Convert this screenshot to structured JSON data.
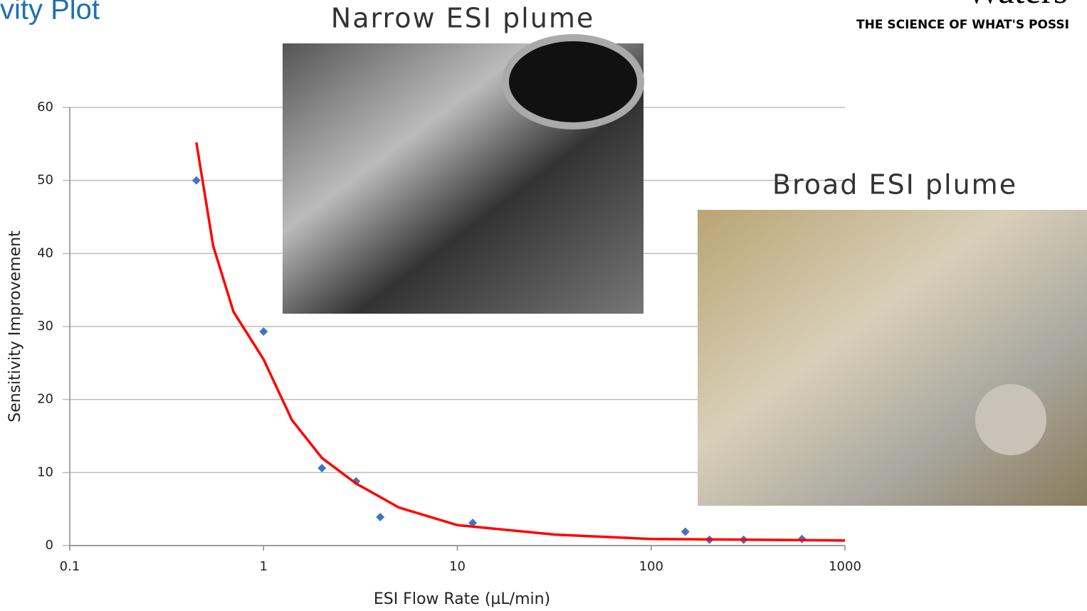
{
  "header": {
    "title": "vity Plot",
    "logo": "Waters",
    "tagline": "THE SCIENCE OF WHAT'S POSSI"
  },
  "images": {
    "narrow_label": "Narrow ESI plume",
    "broad_label": "Broad ESI plume"
  },
  "chart_data": {
    "type": "scatter",
    "x_label": "ESI Flow Rate (µL/min)",
    "y_label": "Sensitivity Improvement",
    "xscale": "log",
    "xlim": [
      0.1,
      1000
    ],
    "xticks": [
      0.1,
      1,
      10,
      100,
      1000
    ],
    "ylim": [
      0,
      60
    ],
    "yticks": [
      0,
      10,
      20,
      30,
      40,
      50,
      60
    ],
    "grid": true,
    "series": [
      {
        "type": "scatter",
        "color": "#4472c4",
        "x": [
          0.45,
          1,
          2,
          3,
          4,
          12,
          150,
          200,
          300,
          600
        ],
        "values": [
          50,
          29.3,
          10.6,
          8.8,
          3.9,
          3.1,
          1.9,
          0.8,
          0.8,
          0.9
        ]
      },
      {
        "type": "line",
        "color": "#ff0000",
        "x": [
          0.45,
          0.55,
          0.7,
          1,
          1.4,
          2,
          3,
          5,
          10,
          32,
          100,
          1000
        ],
        "values": [
          55.2,
          41,
          32,
          25.5,
          17.2,
          12,
          8.5,
          5.2,
          2.8,
          1.5,
          0.9,
          0.7
        ]
      }
    ]
  }
}
